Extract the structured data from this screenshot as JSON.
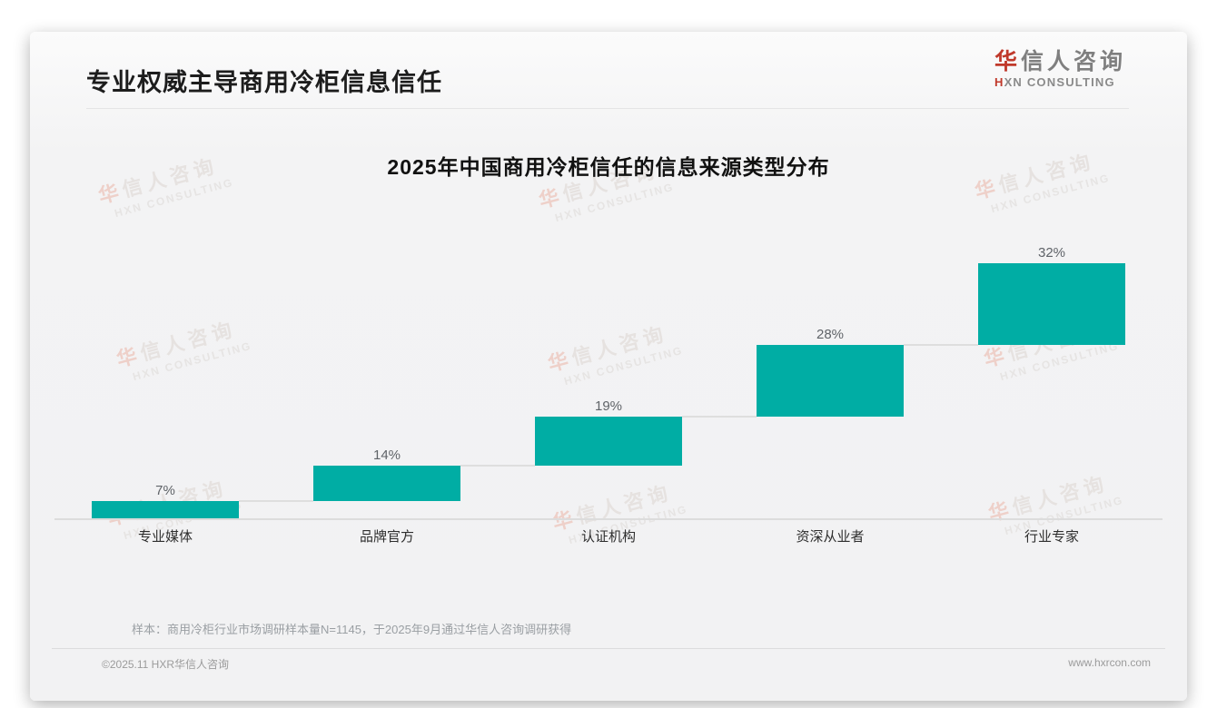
{
  "page": {
    "header": {
      "title": "专业权威主导商用冷柜信息信任"
    },
    "logo": {
      "cn_accent": "华",
      "cn_rest": "信人咨询",
      "en_accent": "H",
      "en_rest": "XN CONSULTING"
    },
    "watermark": {
      "cn_accent": "华",
      "cn_rest": "信人咨询",
      "en": "HXN CONSULTING"
    },
    "footnote": "样本：商用冷柜行业市场调研样本量N=1145，于2025年9月通过华信人咨询调研获得",
    "footer": {
      "left": "©2025.11 HXR华信人咨询",
      "right": "www.hxrcon.com"
    }
  },
  "colors": {
    "brand_red": "#c0392b",
    "bar_teal": "#00ada4",
    "connector_gray": "#dedede",
    "axis_gray": "#dcdcdc",
    "value_label_gray": "#5f6368",
    "category_text": "#2e2e2e",
    "muted_gray": "#9a9fa3"
  },
  "chart_data": {
    "type": "bar",
    "variant": "waterfall-steps",
    "title": "2025年中国商用冷柜信任的信息来源类型分布",
    "categories": [
      "专业媒体",
      "品牌官方",
      "认证机构",
      "资深从业者",
      "行业专家"
    ],
    "values": [
      7,
      14,
      19,
      28,
      32
    ],
    "value_labels": [
      "7%",
      "14%",
      "19%",
      "28%",
      "32%"
    ],
    "cumulative_levels": [
      7,
      21,
      40,
      68,
      100
    ],
    "xlabel": "",
    "ylabel": "",
    "ylim": [
      0,
      100
    ],
    "grid": false,
    "legend": false,
    "bar_color": "#00ada4"
  }
}
